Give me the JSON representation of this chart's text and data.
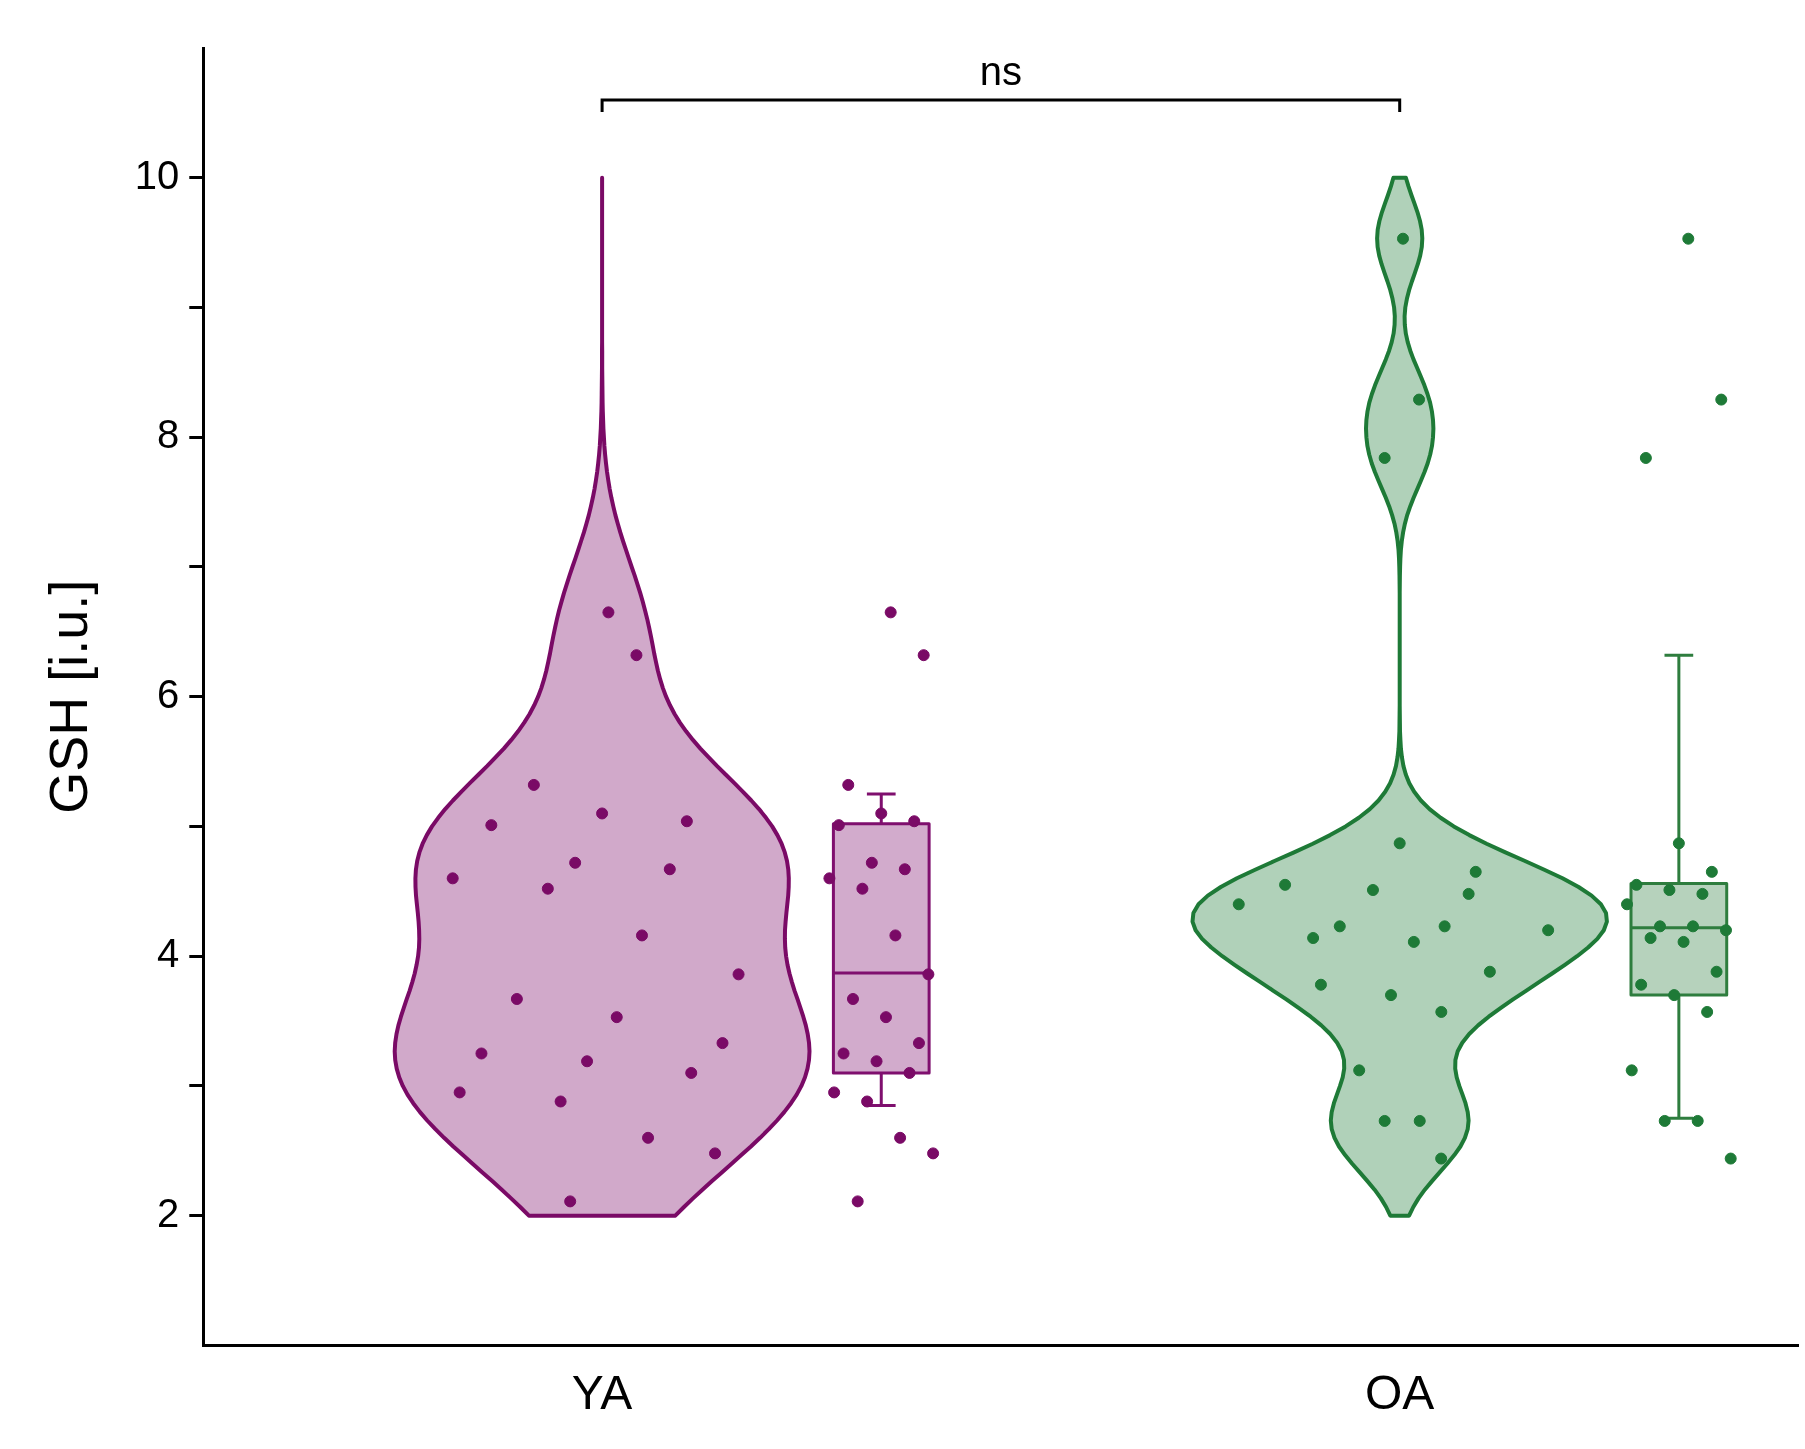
{
  "chart_data": {
    "type": "box",
    "ylabel": "GSH [i.u.]",
    "categories": [
      "YA",
      "OA"
    ],
    "ylim": [
      1,
      11
    ],
    "yticks": [
      2,
      {
        "value": 3,
        "label": null
      },
      4,
      {
        "value": 5,
        "label": null
      },
      6,
      {
        "value": 7,
        "label": null
      },
      8,
      {
        "value": 9,
        "label": null
      },
      10
    ],
    "colors": [
      "#7f0f6e",
      "#2e7d3e"
    ],
    "boxes": [
      {
        "low": 2.85,
        "q1": 3.1,
        "median": 3.87,
        "q3": 5.02,
        "high": 5.25
      },
      {
        "low": 2.75,
        "q1": 3.7,
        "median": 4.22,
        "q3": 4.56,
        "high": 6.32
      }
    ],
    "annotations": [
      "ns"
    ],
    "series": [
      {
        "type": "scatter",
        "color": "#7a0a66",
        "x": [
          "YA",
          "YA",
          "YA",
          "YA",
          "YA",
          "YA",
          "YA",
          "YA",
          "YA",
          "YA",
          "YA",
          "YA",
          "YA",
          "YA",
          "YA",
          "YA",
          "YA",
          "YA",
          "YA",
          "YA",
          "YA",
          "YA",
          "YA"
        ],
        "values": [
          6.65,
          6.32,
          5.32,
          5.1,
          5.04,
          5.01,
          4.72,
          4.67,
          4.6,
          4.52,
          4.16,
          3.86,
          3.67,
          3.53,
          3.33,
          3.25,
          3.19,
          3.1,
          2.95,
          2.88,
          2.6,
          2.48,
          2.11
        ]
      },
      {
        "type": "scatter",
        "color": "#7a0a66",
        "x": [
          "YA",
          "YA",
          "YA",
          "YA",
          "YA",
          "YA",
          "YA",
          "YA",
          "YA",
          "YA",
          "YA",
          "YA",
          "YA",
          "YA",
          "YA",
          "YA",
          "YA",
          "YA",
          "YA",
          "YA",
          "YA",
          "YA",
          "YA"
        ],
        "values": [
          6.65,
          6.32,
          5.32,
          5.1,
          5.04,
          5.01,
          4.72,
          4.67,
          4.6,
          4.52,
          4.16,
          3.86,
          3.67,
          3.53,
          3.33,
          3.25,
          3.19,
          3.1,
          2.95,
          2.88,
          2.6,
          2.48,
          2.11
        ]
      },
      {
        "type": "scatter",
        "color": "#1e7a37",
        "x": [
          "OA",
          "OA",
          "OA",
          "OA",
          "OA",
          "OA",
          "OA",
          "OA",
          "OA",
          "OA",
          "OA",
          "OA",
          "OA",
          "OA",
          "OA",
          "OA",
          "OA",
          "OA",
          "OA",
          "OA",
          "OA",
          "OA"
        ],
        "values": [
          9.53,
          8.29,
          7.84,
          4.87,
          4.65,
          4.55,
          4.51,
          4.48,
          4.4,
          4.23,
          4.23,
          4.2,
          4.14,
          4.11,
          3.88,
          3.78,
          3.7,
          3.57,
          3.12,
          2.73,
          2.73,
          2.44
        ]
      },
      {
        "type": "scatter",
        "color": "#1e7a37",
        "x": [
          "OA",
          "OA",
          "OA",
          "OA",
          "OA",
          "OA",
          "OA",
          "OA",
          "OA",
          "OA",
          "OA",
          "OA",
          "OA",
          "OA",
          "OA",
          "OA",
          "OA",
          "OA",
          "OA",
          "OA",
          "OA",
          "OA"
        ],
        "values": [
          9.53,
          8.29,
          7.84,
          4.87,
          4.65,
          4.55,
          4.51,
          4.48,
          4.4,
          4.23,
          4.23,
          4.2,
          4.14,
          4.11,
          3.88,
          3.78,
          3.7,
          3.57,
          3.12,
          2.73,
          2.73,
          2.44
        ]
      }
    ]
  }
}
